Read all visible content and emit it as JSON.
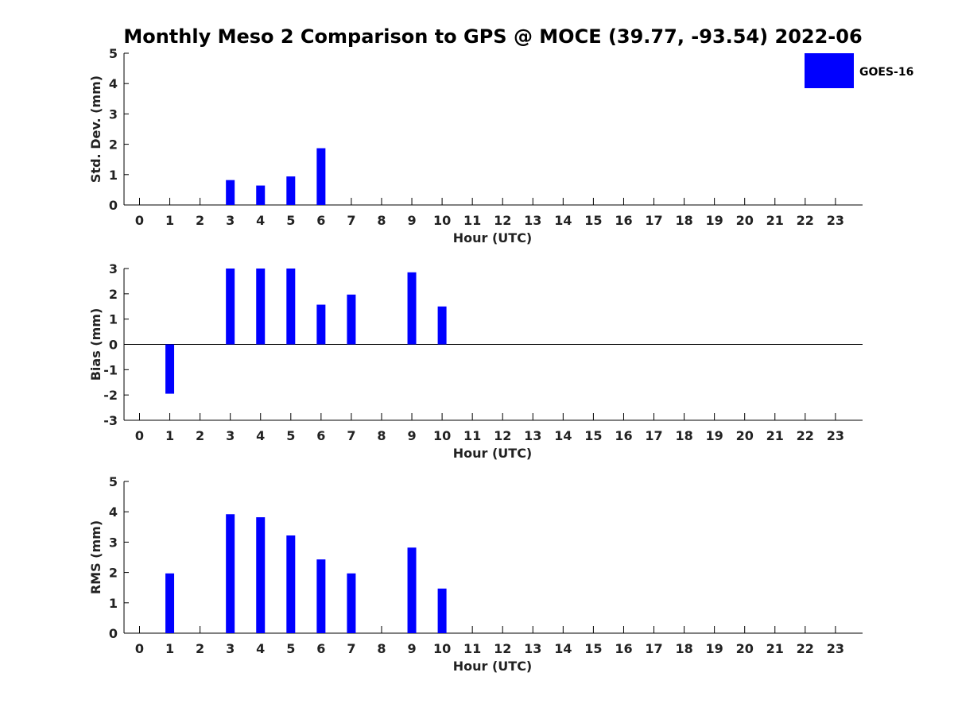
{
  "figure_title": "Monthly Meso 2 Comparison to GPS @ MOCE (39.77, -93.54) 2022-06",
  "legend": {
    "label": "GOES-16",
    "color": "#0000ff"
  },
  "chart_data": [
    {
      "type": "bar",
      "xlabel": "Hour (UTC)",
      "ylabel": "Std. Dev. (mm)",
      "ylim": [
        0,
        5
      ],
      "yticks": [
        0,
        1,
        2,
        3,
        4,
        5
      ],
      "categories": [
        0,
        1,
        2,
        3,
        4,
        5,
        6,
        7,
        8,
        9,
        10,
        11,
        12,
        13,
        14,
        15,
        16,
        17,
        18,
        19,
        20,
        21,
        22,
        23
      ],
      "series": [
        {
          "name": "GOES-16",
          "color": "#0000ff",
          "values": [
            null,
            null,
            null,
            0.82,
            0.64,
            0.94,
            1.87,
            null,
            null,
            null,
            null,
            null,
            null,
            null,
            null,
            null,
            null,
            null,
            null,
            null,
            null,
            null,
            null,
            null
          ]
        }
      ]
    },
    {
      "type": "bar",
      "xlabel": "Hour (UTC)",
      "ylabel": "Bias (mm)",
      "ylim": [
        -3,
        3
      ],
      "yticks": [
        -3,
        -2,
        -1,
        0,
        1,
        2,
        3
      ],
      "zero_line": true,
      "categories": [
        0,
        1,
        2,
        3,
        4,
        5,
        6,
        7,
        8,
        9,
        10,
        11,
        12,
        13,
        14,
        15,
        16,
        17,
        18,
        19,
        20,
        21,
        22,
        23
      ],
      "series": [
        {
          "name": "GOES-16",
          "color": "#0000ff",
          "values": [
            null,
            -1.95,
            null,
            3.0,
            3.0,
            3.0,
            1.57,
            1.97,
            null,
            2.85,
            1.5,
            null,
            null,
            null,
            null,
            null,
            null,
            null,
            null,
            null,
            null,
            null,
            null,
            null
          ]
        }
      ]
    },
    {
      "type": "bar",
      "xlabel": "Hour (UTC)",
      "ylabel": "RMS (mm)",
      "ylim": [
        0,
        5
      ],
      "yticks": [
        0,
        1,
        2,
        3,
        4,
        5
      ],
      "categories": [
        0,
        1,
        2,
        3,
        4,
        5,
        6,
        7,
        8,
        9,
        10,
        11,
        12,
        13,
        14,
        15,
        16,
        17,
        18,
        19,
        20,
        21,
        22,
        23
      ],
      "series": [
        {
          "name": "GOES-16",
          "color": "#0000ff",
          "values": [
            null,
            1.97,
            null,
            3.92,
            3.82,
            3.22,
            2.43,
            1.97,
            null,
            2.82,
            1.47,
            null,
            null,
            null,
            null,
            null,
            null,
            null,
            null,
            null,
            null,
            null,
            null,
            null
          ]
        }
      ]
    }
  ]
}
